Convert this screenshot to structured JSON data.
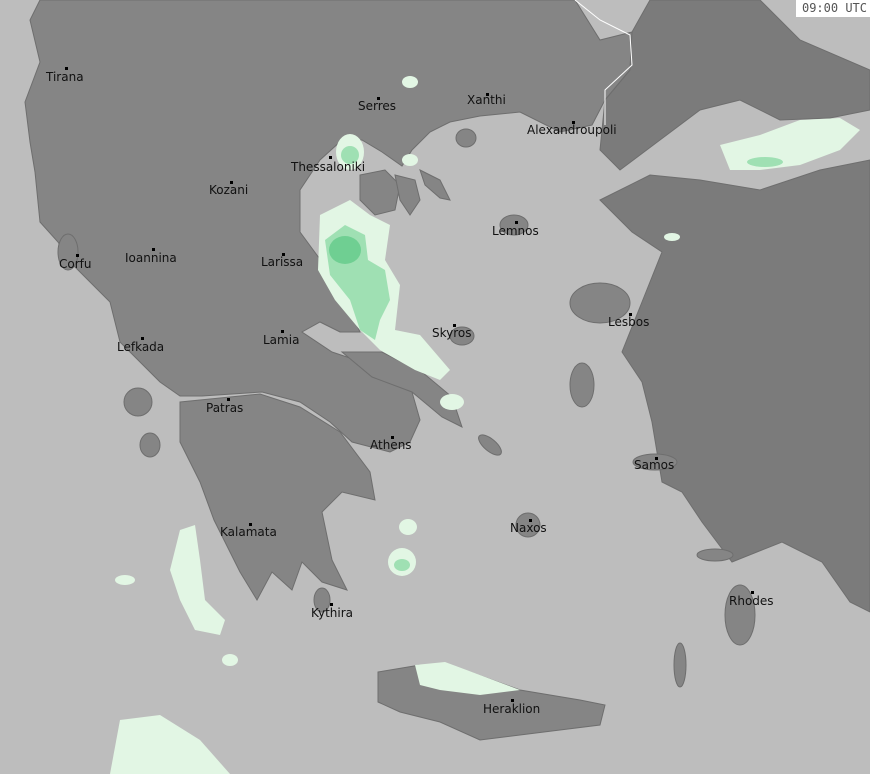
{
  "map": {
    "timestamp": "09:00 UTC",
    "colors": {
      "sea": "#bdbdbd",
      "land": "#858585",
      "land_dark": "#7b7b7b",
      "border": "#ffffff",
      "rain_light": "#e2f6e4",
      "rain_medium": "#9fe0b3",
      "rain_heavy": "#6fcf92"
    },
    "cities": [
      "Tirana",
      "Serres",
      "Xanthi",
      "Alexandroupoli",
      "Thessaloniki",
      "Kozani",
      "Lemnos",
      "Corfu",
      "Ioannina",
      "Larissa",
      "Skyros",
      "Lesbos",
      "Lefkada",
      "Lamia",
      "Patras",
      "Athens",
      "Samos",
      "Naxos",
      "Kalamata",
      "Rhodes",
      "Kythira",
      "Heraklion"
    ]
  }
}
